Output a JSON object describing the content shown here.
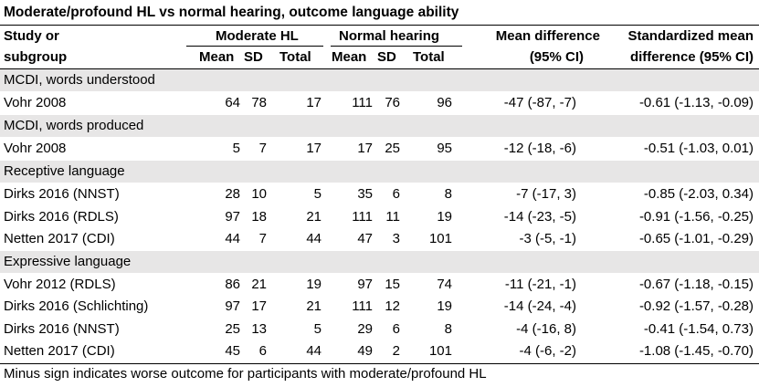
{
  "title": "Moderate/profound HL vs normal hearing, outcome language ability",
  "header": {
    "study_line1": "Study or",
    "study_line2": "subgroup",
    "group1": "Moderate HL",
    "group2": "Normal hearing",
    "mean": "Mean",
    "sd": "SD",
    "total": "Total",
    "md_line1": "Mean difference",
    "md_line2": "(95% CI)",
    "smd_line1": "Standardized mean",
    "smd_line2": "difference (95% CI)"
  },
  "groups": [
    {
      "label": "MCDI, words understood",
      "rows": [
        {
          "study": "Vohr 2008",
          "m1": "64",
          "sd1": "78",
          "n1": "17",
          "m2": "111",
          "sd2": "76",
          "n2": "96",
          "md": "-47 (-87, -7)",
          "smd": "-0.61 (-1.13, -0.09)"
        }
      ]
    },
    {
      "label": "MCDI, words produced",
      "rows": [
        {
          "study": "Vohr 2008",
          "m1": "5",
          "sd1": "7",
          "n1": "17",
          "m2": "17",
          "sd2": "25",
          "n2": "95",
          "md": "-12 (-18, -6)",
          "smd": "-0.51 (-1.03, 0.01)"
        }
      ]
    },
    {
      "label": "Receptive language",
      "rows": [
        {
          "study": "Dirks 2016 (NNST)",
          "m1": "28",
          "sd1": "10",
          "n1": "5",
          "m2": "35",
          "sd2": "6",
          "n2": "8",
          "md": "-7 (-17, 3)",
          "smd": "-0.85 (-2.03, 0.34)"
        },
        {
          "study": "Dirks 2016 (RDLS)",
          "m1": "97",
          "sd1": "18",
          "n1": "21",
          "m2": "111",
          "sd2": "11",
          "n2": "19",
          "md": "-14 (-23, -5)",
          "smd": "-0.91 (-1.56, -0.25)"
        },
        {
          "study": "Netten 2017 (CDI)",
          "m1": "44",
          "sd1": "7",
          "n1": "44",
          "m2": "47",
          "sd2": "3",
          "n2": "101",
          "md": "-3 (-5, -1)",
          "smd": "-0.65 (-1.01, -0.29)"
        }
      ]
    },
    {
      "label": "Expressive language",
      "rows": [
        {
          "study": "Vohr 2012 (RDLS)",
          "m1": "86",
          "sd1": "21",
          "n1": "19",
          "m2": "97",
          "sd2": "15",
          "n2": "74",
          "md": "-11 (-21, -1)",
          "smd": "-0.67 (-1.18, -0.15)"
        },
        {
          "study": "Dirks 2016 (Schlichting)",
          "m1": "97",
          "sd1": "17",
          "n1": "21",
          "m2": "111",
          "sd2": "12",
          "n2": "19",
          "md": "-14 (-24, -4)",
          "smd": "-0.92 (-1.57, -0.28)"
        },
        {
          "study": "Dirks 2016 (NNST)",
          "m1": "25",
          "sd1": "13",
          "n1": "5",
          "m2": "29",
          "sd2": "6",
          "n2": "8",
          "md": "-4 (-16, 8)",
          "smd": "-0.41 (-1.54, 0.73)"
        },
        {
          "study": "Netten 2017 (CDI)",
          "m1": "45",
          "sd1": "6",
          "n1": "44",
          "m2": "49",
          "sd2": "2",
          "n2": "101",
          "md": "-4 (-6, -2)",
          "smd": "-1.08 (-1.45, -0.70)"
        }
      ]
    }
  ],
  "footnote": "Minus sign indicates worse outcome for participants with moderate/profound HL"
}
